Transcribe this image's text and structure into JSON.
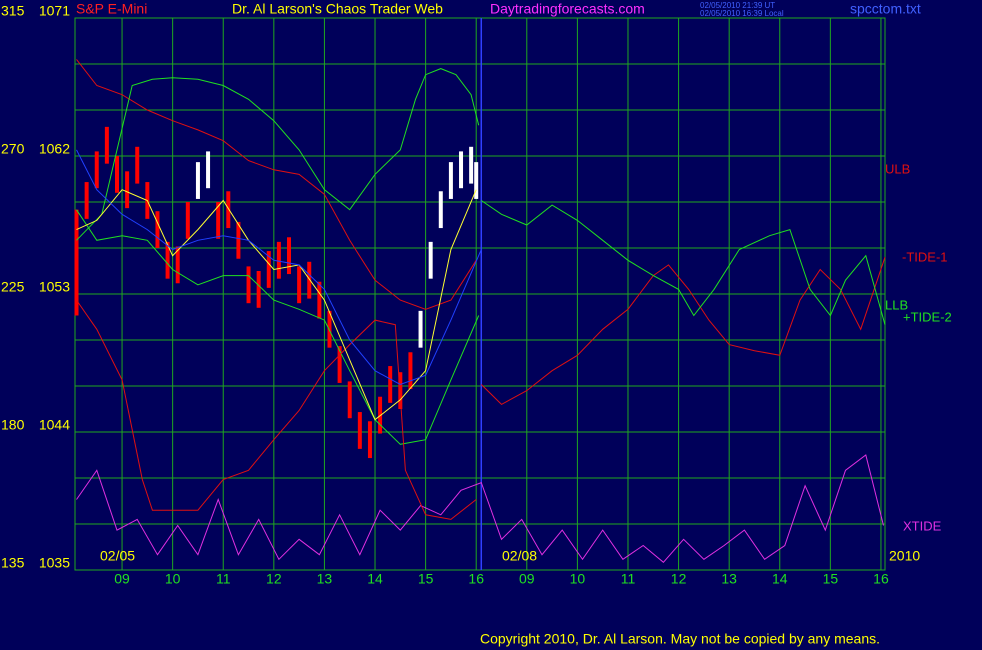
{
  "chart_data": {
    "type": "line",
    "title": "Dr. Al Larson's Chaos Trader Web",
    "instrument": "S&P E-Mini",
    "site": "Daytradingforecasts.com",
    "timestamps": [
      "02/05/2010 21:39 UT",
      "02/05/2010 16:39 Local"
    ],
    "file": "spcctom.txt",
    "copyright": "Copyright 2010, Dr. Al Larson. May not be copied by any means.",
    "annotations": [
      "02/05",
      "02/08",
      "2010"
    ],
    "background": "#00005a",
    "grid_color": "#1fa81f",
    "grid": true,
    "xlim": [
      8.07,
      24.08
    ],
    "xticks": [
      {
        "value": 9,
        "label": "09"
      },
      10,
      11,
      12,
      13,
      14,
      15,
      16,
      {
        "value": 17,
        "label": "09"
      },
      {
        "value": 18,
        "label": "10"
      },
      {
        "value": 19,
        "label": "11"
      },
      {
        "value": 20,
        "label": "12"
      },
      {
        "value": 21,
        "label": "13"
      },
      {
        "value": 22,
        "label": "14"
      },
      {
        "value": 23,
        "label": "15"
      },
      {
        "value": 24,
        "label": "16"
      }
    ],
    "session_break": 16.1,
    "ylim": [
      1035,
      1071
    ],
    "yticks": [
      1035,
      1044,
      1053,
      1062,
      1071
    ],
    "y_gridlines": [
      1035,
      1038,
      1041,
      1044,
      1047,
      1050,
      1053,
      1056,
      1059,
      1062,
      1065,
      1068,
      1071
    ],
    "y2lim": [
      135,
      315
    ],
    "y2ticks": [
      135,
      180,
      225,
      270,
      315
    ],
    "bars": {
      "x": [
        8.1,
        8.3,
        8.5,
        8.7,
        8.9,
        9.1,
        9.3,
        9.5,
        9.7,
        9.9,
        10.1,
        10.3,
        10.5,
        10.7,
        10.9,
        11.1,
        11.3,
        11.5,
        11.7,
        11.9,
        12.1,
        12.3,
        12.5,
        12.7,
        12.9,
        13.1,
        13.3,
        13.5,
        13.7,
        13.9,
        14.1,
        14.3,
        14.5,
        14.7,
        14.9,
        15.1,
        15.3,
        15.5,
        15.7,
        15.9,
        16.0
      ],
      "high": [
        1058.5,
        1060.3,
        1062.3,
        1063.9,
        1062.0,
        1061.0,
        1062.6,
        1060.3,
        1058.4,
        1056.4,
        1056.1,
        1059.0,
        1061.6,
        1062.3,
        1059.0,
        1059.7,
        1057.7,
        1054.8,
        1054.5,
        1055.8,
        1056.4,
        1056.7,
        1054.8,
        1055.1,
        1053.8,
        1051.9,
        1049.6,
        1047.3,
        1045.3,
        1044.7,
        1046.3,
        1048.3,
        1047.9,
        1049.2,
        1051.9,
        1056.4,
        1059.7,
        1061.6,
        1062.3,
        1062.6,
        1061.6
      ],
      "low": [
        1051.6,
        1057.9,
        1059.9,
        1061.5,
        1059.6,
        1058.6,
        1060.2,
        1057.9,
        1056.0,
        1054.0,
        1053.7,
        1056.6,
        1059.2,
        1059.9,
        1056.6,
        1057.3,
        1055.3,
        1052.4,
        1052.1,
        1053.4,
        1054.0,
        1054.3,
        1052.4,
        1052.7,
        1051.4,
        1049.5,
        1047.2,
        1044.9,
        1042.9,
        1042.3,
        1043.9,
        1045.9,
        1045.5,
        1046.8,
        1049.5,
        1054.0,
        1057.3,
        1059.2,
        1059.9,
        1060.2,
        1059.2
      ],
      "colors": [
        "#ff0000",
        "#ff0000",
        "#ff0000",
        "#ff0000",
        "#ff0000",
        "#ff0000",
        "#ff0000",
        "#ff0000",
        "#ff0000",
        "#ff0000",
        "#ff0000",
        "#ff0000",
        "#ffffff",
        "#ffffff",
        "#ff0000",
        "#ff0000",
        "#ff0000",
        "#ff0000",
        "#ff0000",
        "#ff0000",
        "#ff0000",
        "#ff0000",
        "#ff0000",
        "#ff0000",
        "#ff0000",
        "#ff0000",
        "#ff0000",
        "#ff0000",
        "#ff0000",
        "#ff0000",
        "#ff0000",
        "#ff0000",
        "#ff0000",
        "#ff0000",
        "#ffffff",
        "#ffffff",
        "#ffffff",
        "#ffffff",
        "#ffffff",
        "#ffffff",
        "#ffffff"
      ]
    },
    "series": [
      {
        "name": "ULB",
        "color": "#e01010",
        "x": [
          8.1,
          8.5,
          9,
          9.5,
          10,
          10.5,
          11,
          11.5,
          12,
          12.5,
          13,
          13.5,
          14,
          14.5,
          15,
          15.5,
          16
        ],
        "values": [
          1068.3,
          1066.6,
          1066.0,
          1065.0,
          1064.3,
          1063.7,
          1063.0,
          1061.7,
          1061.1,
          1060.8,
          1059.5,
          1056.5,
          1053.9,
          1052.6,
          1052.0,
          1052.6,
          1055.2
        ]
      },
      {
        "name": "LLB",
        "color": "#20e020",
        "x": [
          8.1,
          8.5,
          9,
          9.5,
          10,
          10.5,
          11,
          11.5,
          12,
          12.5,
          13,
          13.5,
          14,
          14.5,
          15,
          15.5,
          16.05
        ],
        "values": [
          1058.5,
          1056.5,
          1056.8,
          1056.5,
          1054.6,
          1053.6,
          1054.2,
          1054.2,
          1052.6,
          1052.0,
          1051.3,
          1048.0,
          1044.8,
          1043.2,
          1043.5,
          1047.4,
          1051.6
        ]
      },
      {
        "name": "-TIDE-1",
        "color": "#e01010",
        "x": [
          16.1,
          16.5,
          17,
          17.5,
          18,
          18.5,
          19,
          19.5,
          19.8,
          20.2,
          20.6,
          21,
          21.5,
          22,
          22.4,
          22.8,
          23.2,
          23.6,
          24.08
        ],
        "values": [
          1047.1,
          1045.8,
          1046.7,
          1048.0,
          1049.0,
          1050.7,
          1052.0,
          1054.2,
          1054.9,
          1053.3,
          1051.3,
          1049.7,
          1049.3,
          1049.0,
          1052.6,
          1054.6,
          1053.3,
          1050.7,
          1055.4
        ]
      },
      {
        "name": "+TIDE-2",
        "color": "#20e020",
        "x": [
          16.1,
          16.5,
          17,
          17.5,
          18,
          18.5,
          19,
          19.5,
          20,
          20.3,
          20.7,
          21.2,
          21.8,
          22.2,
          22.6,
          23,
          23.3,
          23.7,
          24.08
        ],
        "values": [
          1059.1,
          1058.2,
          1057.5,
          1058.8,
          1057.8,
          1056.5,
          1055.2,
          1054.2,
          1053.3,
          1051.6,
          1053.3,
          1055.9,
          1056.8,
          1057.2,
          1053.3,
          1051.6,
          1053.9,
          1055.5,
          1051.0
        ]
      },
      {
        "name": "XTIDE",
        "color": "#e030e0",
        "x": [
          8.1,
          8.5,
          8.9,
          9.3,
          9.7,
          10.1,
          10.5,
          10.9,
          11.3,
          11.7,
          12.1,
          12.5,
          12.9,
          13.3,
          13.7,
          14.1,
          14.5,
          14.9,
          15.3,
          15.7,
          16.1,
          16.5,
          16.9,
          17.3,
          17.7,
          18.1,
          18.5,
          18.9,
          19.3,
          19.7,
          20.1,
          20.5,
          20.9,
          21.3,
          21.7,
          22.1,
          22.5,
          22.9,
          23.3,
          23.7,
          24.05
        ],
        "values": [
          1039.6,
          1041.5,
          1037.6,
          1038.3,
          1036.0,
          1037.9,
          1036.0,
          1039.6,
          1036.0,
          1038.3,
          1035.7,
          1037.0,
          1036.0,
          1038.6,
          1036.0,
          1038.9,
          1037.6,
          1039.2,
          1038.6,
          1040.2,
          1040.7,
          1037.0,
          1038.3,
          1036.0,
          1037.6,
          1035.7,
          1037.6,
          1035.7,
          1036.6,
          1035.5,
          1037.0,
          1035.7,
          1036.6,
          1037.6,
          1035.7,
          1036.6,
          1040.5,
          1037.6,
          1041.5,
          1042.5,
          1037.9
        ]
      },
      {
        "color": "#20e020",
        "x": [
          8.1,
          8.6,
          9.2,
          9.6,
          10,
          10.5,
          11,
          11.5,
          12,
          12.5,
          13,
          13.5,
          14,
          14.5,
          14.8,
          15,
          15.3,
          15.6,
          15.9,
          16.05
        ],
        "values": [
          1056.5,
          1058.2,
          1066.6,
          1067.0,
          1067.1,
          1067.0,
          1066.6,
          1065.7,
          1064.3,
          1062.4,
          1059.8,
          1058.5,
          1060.8,
          1062.4,
          1065.7,
          1067.3,
          1067.7,
          1067.3,
          1066.0,
          1064.0
        ]
      },
      {
        "color": "#e01010",
        "x": [
          8.1,
          8.5,
          9,
          9.4,
          9.6,
          10,
          10.5,
          11,
          11.5,
          12,
          12.5,
          13,
          13.5,
          14,
          14.4,
          14.6,
          15,
          15.5,
          16
        ],
        "values": [
          1052.6,
          1050.7,
          1047.4,
          1040.9,
          1038.9,
          1038.9,
          1038.9,
          1040.9,
          1041.5,
          1043.5,
          1045.4,
          1048.0,
          1049.7,
          1051.3,
          1051.0,
          1041.5,
          1038.6,
          1038.3,
          1039.6
        ]
      },
      {
        "color": "#ffff30",
        "x": [
          8.1,
          8.5,
          9,
          9.5,
          10,
          10.5,
          11,
          11.5,
          12,
          12.5,
          13,
          13.5,
          14,
          14.5,
          15,
          15.5,
          16
        ],
        "values": [
          1057.2,
          1057.8,
          1059.8,
          1059.1,
          1055.5,
          1057.2,
          1059.1,
          1056.5,
          1054.6,
          1054.9,
          1052.6,
          1048.7,
          1044.8,
          1046.1,
          1048.0,
          1055.9,
          1059.8
        ]
      },
      {
        "color": "#2040ff",
        "x": [
          8.1,
          8.5,
          9,
          9.5,
          10,
          10.5,
          11,
          11.5,
          12,
          12.5,
          13,
          13.5,
          14,
          14.5,
          15,
          15.5,
          16.1
        ],
        "values": [
          1062.4,
          1059.8,
          1058.2,
          1057.2,
          1055.9,
          1056.5,
          1056.8,
          1056.5,
          1055.2,
          1054.9,
          1053.3,
          1050.0,
          1048.0,
          1047.1,
          1047.7,
          1051.3,
          1055.9
        ]
      }
    ]
  }
}
